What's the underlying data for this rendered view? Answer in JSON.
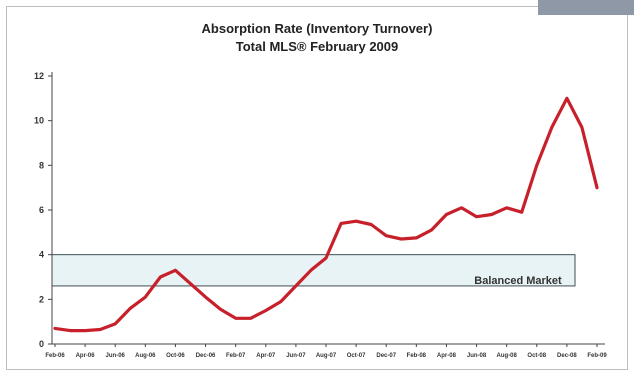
{
  "chart_data": {
    "type": "line",
    "title": "Absorption Rate (Inventory Turnover)",
    "subtitle": "Total MLS® February 2009",
    "xlabel": "",
    "ylabel": "",
    "ylim": [
      0,
      12
    ],
    "yticks": [
      0,
      2,
      4,
      6,
      8,
      10,
      12
    ],
    "grid": false,
    "x_tick_labels": [
      "Feb-06",
      "Apr-06",
      "Jun-06",
      "Aug-06",
      "Oct-06",
      "Dec-06",
      "Feb-07",
      "Apr-07",
      "Jun-07",
      "Aug-07",
      "Oct-07",
      "Dec-07",
      "Feb-08",
      "Apr-08",
      "Jun-08",
      "Aug-08",
      "Oct-08",
      "Dec-08",
      "Feb-09"
    ],
    "series": [
      {
        "color": "#c8202b",
        "values": [
          0.7,
          0.6,
          0.6,
          0.65,
          0.9,
          1.6,
          2.1,
          3.0,
          3.3,
          2.7,
          2.1,
          1.55,
          1.15,
          1.15,
          1.5,
          1.9,
          2.6,
          3.3,
          3.85,
          5.4,
          5.5,
          5.35,
          4.85,
          4.7,
          4.75,
          5.1,
          5.8,
          6.1,
          5.7,
          5.8,
          6.1,
          5.9,
          8.0,
          9.7,
          11.0,
          9.7,
          7.0
        ]
      }
    ],
    "annotations": [
      {
        "text": "Balanced Market",
        "band": [
          2.6,
          4.0
        ],
        "color": "#e7f3f4"
      }
    ]
  }
}
